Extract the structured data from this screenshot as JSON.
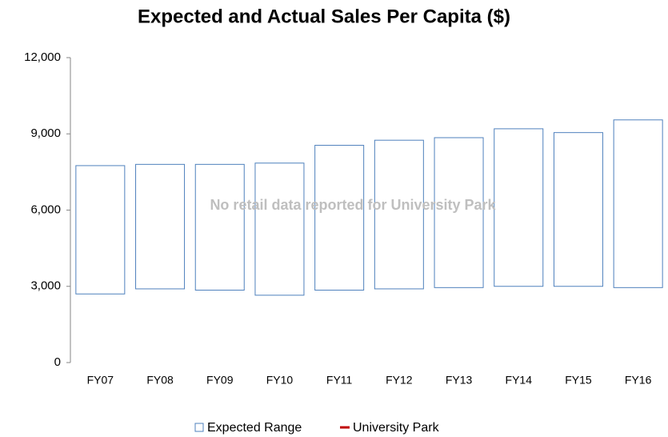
{
  "chart_data": {
    "type": "bar",
    "title": "Expected and Actual Sales Per Capita ($)",
    "annotation": "No retail data reported for University Park",
    "categories": [
      "FY07",
      "FY08",
      "FY09",
      "FY10",
      "FY11",
      "FY12",
      "FY13",
      "FY14",
      "FY15",
      "FY16"
    ],
    "series": [
      {
        "name": "Expected Range",
        "color": "#4f81bd",
        "low": [
          2700,
          2900,
          2850,
          2650,
          2850,
          2900,
          2950,
          3000,
          3000,
          2950
        ],
        "high": [
          7750,
          7800,
          7800,
          7850,
          8550,
          8750,
          8850,
          9200,
          9050,
          9550
        ]
      },
      {
        "name": "University Park",
        "color": "#c00000",
        "values": [
          null,
          null,
          null,
          null,
          null,
          null,
          null,
          null,
          null,
          null
        ]
      }
    ],
    "ylim": [
      0,
      12000
    ],
    "yticks": [
      0,
      {
        "value": 3000,
        "label": "3,000"
      },
      {
        "value": 6000,
        "label": "6,000"
      },
      {
        "value": 9000,
        "label": "9,000"
      },
      {
        "value": 12000,
        "label": "12,000"
      }
    ],
    "grid": false,
    "legend": "bottom"
  }
}
